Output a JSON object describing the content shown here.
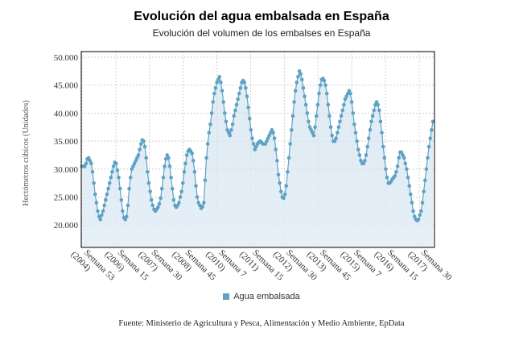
{
  "chart_data": {
    "type": "area",
    "title": "Evolución del agua embalsada en España",
    "subtitle": "Evolución del volumen de los embalses en España",
    "ylabel": "Hectómetros cúbicos (Unidades)",
    "xlabel": "",
    "ylim": [
      16000,
      51000
    ],
    "y_ticks": [
      "20.000",
      "25.000",
      "30.000",
      "35.000",
      "40.000",
      "45.000",
      "50.000"
    ],
    "y_tick_values": [
      20000,
      25000,
      30000,
      35000,
      40000,
      45000,
      50000
    ],
    "x_ticks": [
      {
        "line1": "Semana 53",
        "line2": "(2004)"
      },
      {
        "line1": "Semana 15",
        "line2": "(2006)"
      },
      {
        "line1": "Semana 30",
        "line2": "(2007)"
      },
      {
        "line1": "Semana 45",
        "line2": "(2008)"
      },
      {
        "line1": "Semana 7",
        "line2": "(2010)"
      },
      {
        "line1": "Semana 15",
        "line2": "(2011)"
      },
      {
        "line1": "Semana 30",
        "line2": "(2012)"
      },
      {
        "line1": "Semana 45",
        "line2": "(2013)"
      },
      {
        "line1": "Semana 7",
        "line2": "(2015)"
      },
      {
        "line1": "Semana 15",
        "line2": "(2016)"
      },
      {
        "line1": "Semana 30",
        "line2": "(2017)"
      }
    ],
    "grid": true,
    "legend": "bottom-center",
    "series": [
      {
        "name": "Agua embalsada",
        "color": "#5fa2c5",
        "values": [
          30500,
          30500,
          30500,
          31000,
          31800,
          32000,
          31500,
          31000,
          29500,
          27500,
          25500,
          24000,
          22500,
          21500,
          21000,
          21800,
          22500,
          23500,
          24500,
          25500,
          26500,
          27500,
          28500,
          29500,
          30500,
          31200,
          31000,
          29800,
          28500,
          26500,
          24500,
          22500,
          21300,
          21000,
          21500,
          23500,
          26500,
          28500,
          30000,
          30500,
          31000,
          31500,
          32000,
          32500,
          33500,
          34500,
          35200,
          35000,
          34000,
          32000,
          29500,
          27500,
          26000,
          24500,
          23500,
          22800,
          22500,
          22800,
          23200,
          23800,
          24800,
          26500,
          28500,
          30500,
          31800,
          32500,
          32000,
          30500,
          28500,
          26500,
          24500,
          23500,
          23200,
          23500,
          24000,
          25000,
          26000,
          27500,
          29500,
          31000,
          32500,
          33200,
          33500,
          33200,
          32800,
          31500,
          29500,
          27000,
          25000,
          24000,
          23500,
          23000,
          23300,
          24000,
          28000,
          32000,
          34500,
          36500,
          38000,
          40000,
          42000,
          43500,
          44500,
          45500,
          46000,
          46500,
          45500,
          44000,
          42000,
          40000,
          38500,
          37000,
          36500,
          36000,
          37000,
          38000,
          39500,
          40500,
          41500,
          42500,
          43500,
          44500,
          45500,
          45800,
          45500,
          44500,
          43000,
          41000,
          39000,
          37000,
          35500,
          34500,
          33500,
          34000,
          34500,
          34800,
          35000,
          34800,
          34500,
          34500,
          34500,
          35000,
          35500,
          36000,
          36500,
          37000,
          36500,
          35500,
          33500,
          31500,
          29000,
          27500,
          26000,
          25000,
          24800,
          25500,
          27000,
          29500,
          32000,
          34500,
          37000,
          39500,
          42000,
          44000,
          45500,
          46500,
          47500,
          47000,
          46000,
          44500,
          43000,
          41500,
          40000,
          38500,
          37500,
          37000,
          36500,
          36000,
          37500,
          39500,
          41500,
          43500,
          45000,
          46000,
          46200,
          45800,
          45000,
          43500,
          41500,
          39500,
          37500,
          36000,
          35000,
          35000,
          35500,
          36500,
          37500,
          38500,
          39500,
          40500,
          41500,
          42500,
          43000,
          43500,
          44000,
          43500,
          42000,
          40000,
          38000,
          36500,
          35000,
          33500,
          32500,
          31500,
          31000,
          31000,
          31500,
          32500,
          34000,
          35500,
          37000,
          38500,
          39500,
          40500,
          41500,
          42000,
          41500,
          40500,
          38500,
          36500,
          34000,
          32000,
          30000,
          28500,
          27500,
          27500,
          27800,
          28200,
          28500,
          28800,
          29500,
          30500,
          32000,
          33000,
          33000,
          32500,
          32000,
          31000,
          30000,
          28500,
          27000,
          25500,
          24000,
          22500,
          21500,
          21000,
          20800,
          21000,
          21800,
          22500,
          24000,
          26000,
          28000,
          30000,
          32000,
          34000,
          35500,
          37000,
          38500
        ]
      }
    ]
  },
  "legend": {
    "label": "Agua embalsada"
  },
  "source": "Fuente: Ministerio de Agricultura y Pesca, Alimentación y Medio Ambiente, EpData"
}
